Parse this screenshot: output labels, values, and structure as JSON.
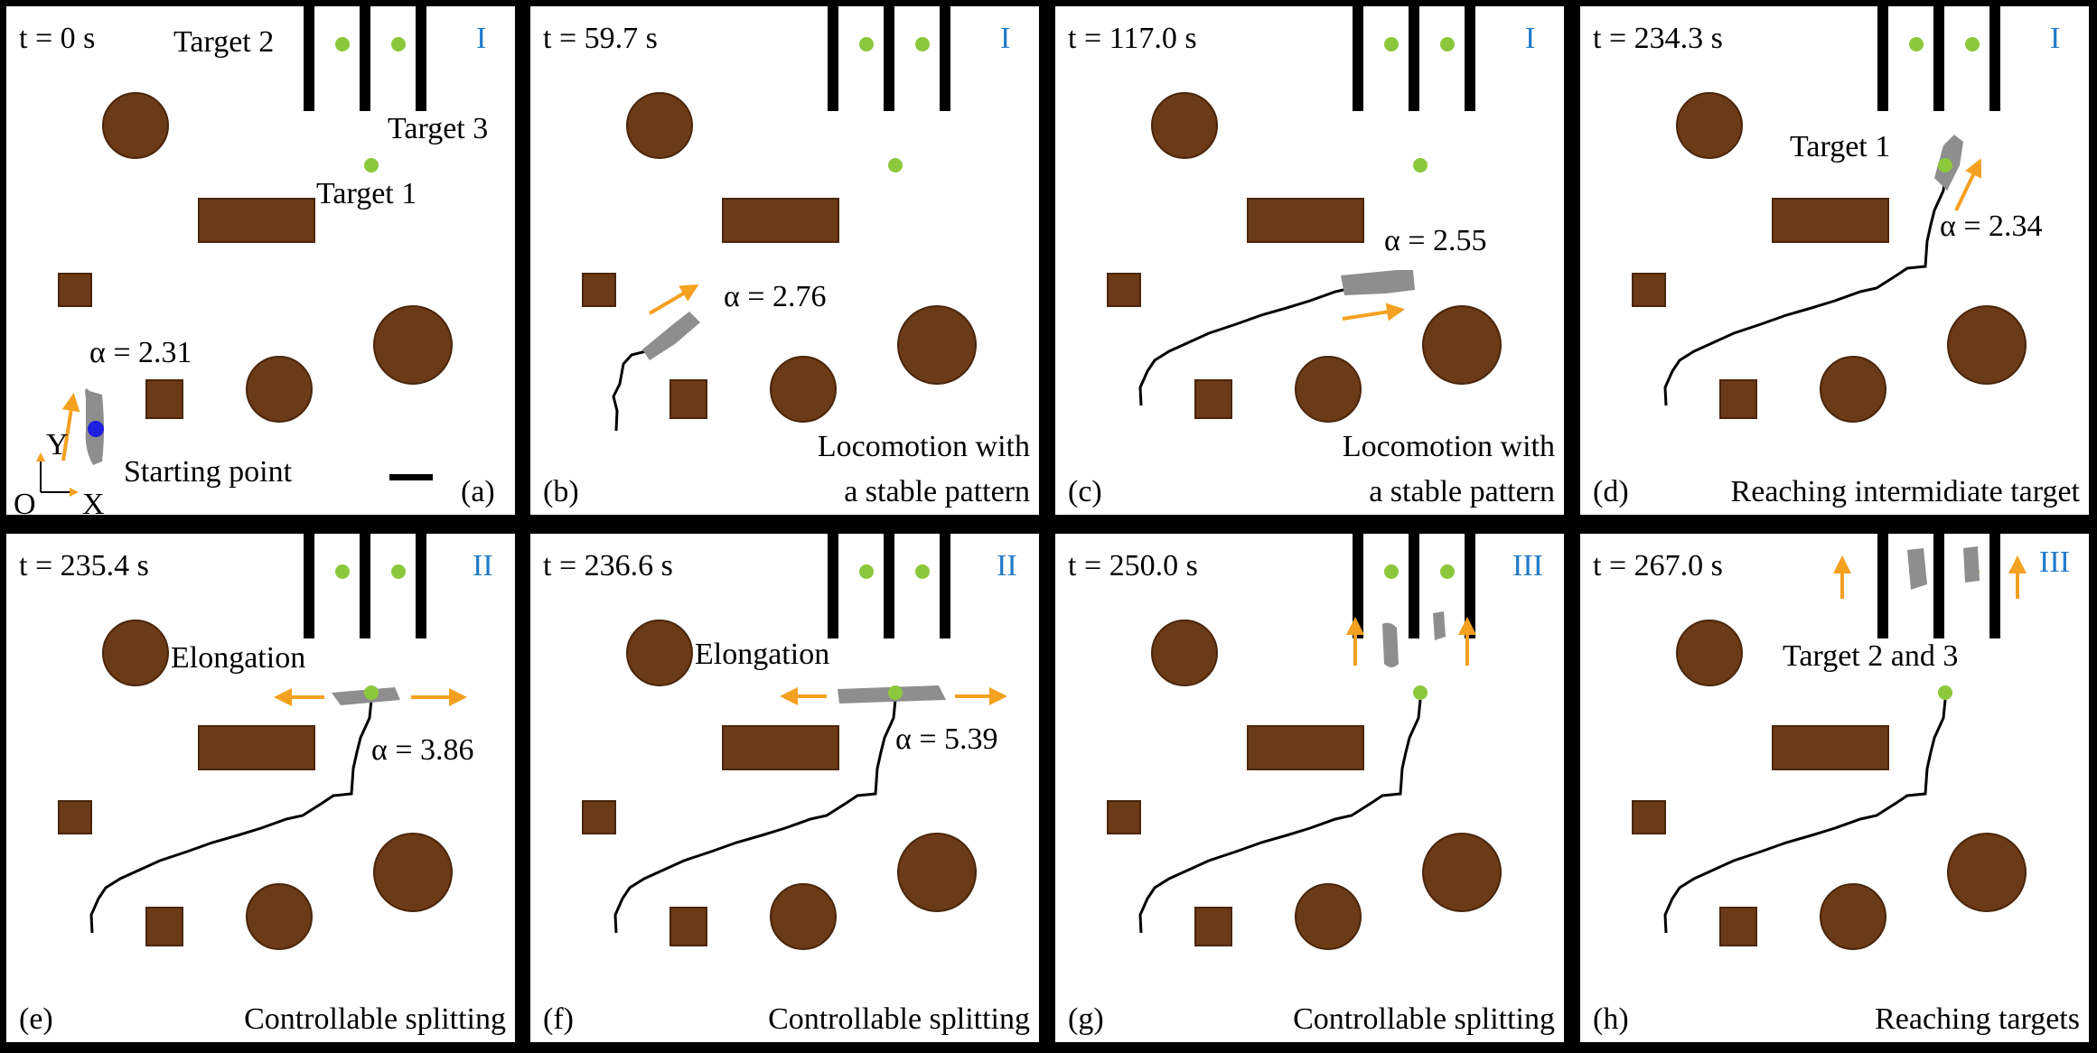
{
  "colors": {
    "frame": "#000000",
    "obstacle": "#6b3a16",
    "obstacle_stroke": "#4a260b",
    "target": "#8cc83c",
    "arrow": "#f4a020",
    "trace": "#000000",
    "swarm": "#8e8e8e",
    "start_point": "#1f1fe0",
    "phase": "#1f7ac9"
  },
  "panels": [
    {
      "id": "a",
      "time": "t = 0 s",
      "phase": "I",
      "letter": "(a)",
      "caption": [
        "Starting point"
      ],
      "alpha": "α = 2.31",
      "targets_text": [
        "Target 2",
        "Target 3",
        "Target 1"
      ],
      "axis": {
        "y": "Y",
        "origin": "O",
        "x": "X"
      }
    },
    {
      "id": "b",
      "time": "t = 59.7 s",
      "phase": "I",
      "letter": "(b)",
      "caption": [
        "Locomotion with",
        "a stable pattern"
      ],
      "alpha": "α = 2.76"
    },
    {
      "id": "c",
      "time": "t = 117.0 s",
      "phase": "I",
      "letter": "(c)",
      "caption": [
        "Locomotion with",
        "a stable pattern"
      ],
      "alpha": "α = 2.55"
    },
    {
      "id": "d",
      "time": "t = 234.3 s",
      "phase": "I",
      "letter": "(d)",
      "caption": [
        "Reaching intermidiate target"
      ],
      "alpha": "α = 2.34",
      "targets_text": [
        "Target 1"
      ]
    },
    {
      "id": "e",
      "time": "t = 235.4 s",
      "phase": "II",
      "letter": "(e)",
      "caption": [
        "Controllable splitting"
      ],
      "alpha": "α = 3.86",
      "note": "Elongation"
    },
    {
      "id": "f",
      "time": "t = 236.6 s",
      "phase": "II",
      "letter": "(f)",
      "caption": [
        "Controllable splitting"
      ],
      "alpha": "α = 5.39",
      "note": "Elongation"
    },
    {
      "id": "g",
      "time": "t = 250.0 s",
      "phase": "III",
      "letter": "(g)",
      "caption": [
        "Controllable splitting"
      ]
    },
    {
      "id": "h",
      "time": "t = 267.0 s",
      "phase": "III",
      "letter": "(h)",
      "caption": [
        "Reaching targets"
      ],
      "targets_text": [
        "Target 2 and 3"
      ]
    }
  ]
}
